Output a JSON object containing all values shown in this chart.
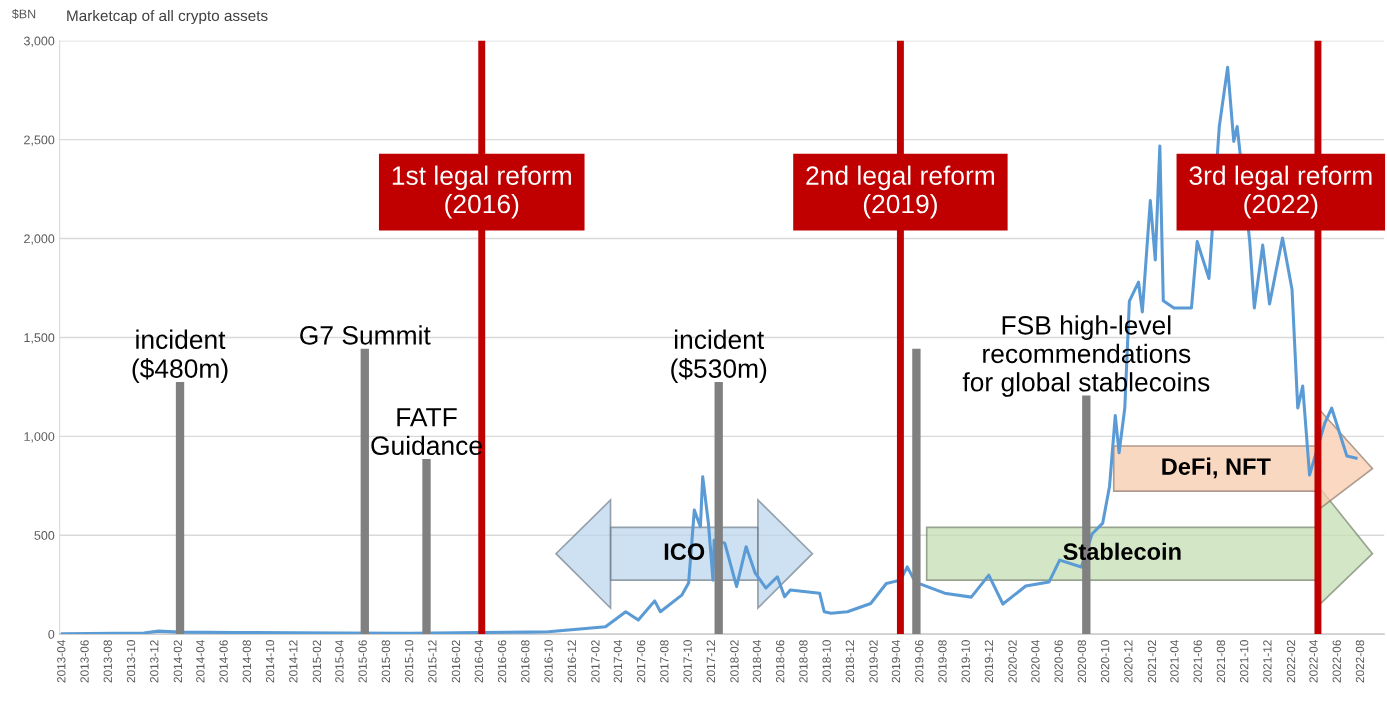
{
  "chart_data": {
    "type": "line",
    "title": "Marketcap of all crypto assets",
    "ylabel": "$BN",
    "color": "#5b9bd5",
    "x": [
      "2013-04-01",
      "2013-11-01",
      "2013-12-10",
      "2014-02-01",
      "2014-07-01",
      "2015-04-01",
      "2015-10-01",
      "2016-04-01",
      "2016-08-01",
      "2016-09-28",
      "2017-02-25",
      "2017-04-19",
      "2017-05-22",
      "2017-07-04",
      "2017-07-19",
      "2017-09-13",
      "2017-10-01",
      "2017-10-16",
      "2017-11-01",
      "2017-11-07",
      "2017-11-22",
      "2017-12-04",
      "2017-12-07",
      "2018-01-04",
      "2018-02-04",
      "2018-03-01",
      "2018-03-25",
      "2018-04-22",
      "2018-05-22",
      "2018-06-10",
      "2018-06-25",
      "2018-09-10",
      "2018-09-22",
      "2018-10-10",
      "2018-11-22",
      "2019-01-22",
      "2019-03-04",
      "2019-04-10",
      "2019-04-28",
      "2019-05-19",
      "2019-08-04",
      "2019-10-13",
      "2019-11-28",
      "2020-01-04",
      "2020-03-04",
      "2020-05-04",
      "2020-06-01",
      "2020-07-28",
      "2020-08-25",
      "2020-09-22",
      "2020-10-10",
      "2020-10-25",
      "2020-11-04",
      "2020-11-19",
      "2020-12-01",
      "2020-12-25",
      "2021-01-04",
      "2021-01-25",
      "2021-02-07",
      "2021-02-19",
      "2021-02-28",
      "2021-03-28",
      "2021-05-13",
      "2021-05-28",
      "2021-06-28",
      "2021-07-25",
      "2021-08-16",
      "2021-09-01",
      "2021-09-10",
      "2021-10-13",
      "2021-10-25",
      "2021-11-16",
      "2021-12-04",
      "2022-01-07",
      "2022-02-01",
      "2022-02-16",
      "2022-03-01",
      "2022-03-19",
      "2022-04-28",
      "2022-05-16",
      "2022-06-25",
      "2022-07-19"
    ],
    "values": [
      2,
      5,
      15,
      10,
      8,
      5,
      4,
      8,
      10,
      12,
      37,
      113,
      71,
      168,
      113,
      197,
      258,
      627,
      543,
      796,
      561,
      273,
      475,
      460,
      240,
      442,
      308,
      233,
      290,
      189,
      223,
      207,
      113,
      105,
      113,
      155,
      256,
      273,
      340,
      263,
      207,
      187,
      298,
      152,
      243,
      263,
      374,
      339,
      506,
      561,
      748,
      1105,
      917,
      1143,
      1684,
      1780,
      1629,
      2192,
      1892,
      2468,
      1686,
      1649,
      1649,
      1985,
      1798,
      2566,
      2866,
      2491,
      2566,
      1985,
      1649,
      1967,
      1669,
      2003,
      1742,
      1143,
      1254,
      804,
      1067,
      1143,
      900,
      890
    ],
    "xlim": [
      "2013-03-25",
      "2022-10-01"
    ],
    "xticks": [
      "2013-04",
      "2013-06",
      "2013-08",
      "2013-10",
      "2013-12",
      "2014-02",
      "2014-04",
      "2014-06",
      "2014-08",
      "2014-10",
      "2014-12",
      "2015-02",
      "2015-04",
      "2015-06",
      "2015-08",
      "2015-10",
      "2015-12",
      "2016-02",
      "2016-04",
      "2016-06",
      "2016-08",
      "2016-10",
      "2016-12",
      "2017-02",
      "2017-04",
      "2017-06",
      "2017-08",
      "2017-10",
      "2017-12",
      "2018-02",
      "2018-04",
      "2018-06",
      "2018-08",
      "2018-10",
      "2018-12",
      "2019-02",
      "2019-04",
      "2019-06",
      "2019-08",
      "2019-10",
      "2019-12",
      "2020-02",
      "2020-04",
      "2020-06",
      "2020-08",
      "2020-10",
      "2020-12",
      "2021-02",
      "2021-04",
      "2021-06",
      "2021-08",
      "2021-10",
      "2021-12",
      "2022-02",
      "2022-04",
      "2022-06",
      "2022-08"
    ],
    "ylim": [
      0,
      3000
    ],
    "yticks": [
      0,
      500,
      {
        "value": 1000,
        "label": "1,000"
      },
      {
        "value": 1500,
        "label": "1,500"
      },
      {
        "value": 2000,
        "label": "2,000"
      },
      {
        "value": 2500,
        "label": "2,500"
      },
      {
        "value": 3000,
        "label": "3,000"
      }
    ],
    "grid": "y",
    "ref_lines": [
      {
        "axis": "x",
        "value": "2016-04-06",
        "label": "1st legal reform\n(2016)",
        "color": "#c00000"
      },
      {
        "axis": "x",
        "value": "2019-04-10",
        "label": "2nd legal reform\n(2019)",
        "color": "#c00000"
      },
      {
        "axis": "x",
        "value": "2022-04-10",
        "label": "3rd legal reform\n(2022)",
        "color": "#c00000"
      },
      {
        "axis": "x",
        "value": "2014-02-04",
        "label": "incident\n($480m)",
        "color": "#808080"
      },
      {
        "axis": "x",
        "value": "2015-06-04",
        "label": "G7 Summit",
        "color": "#808080"
      },
      {
        "axis": "x",
        "value": "2015-11-13",
        "label": "FATF\nGuidance",
        "color": "#808080"
      },
      {
        "axis": "x",
        "value": "2017-12-19",
        "label": "incident\n($530m)",
        "color": "#808080"
      },
      {
        "axis": "x",
        "value": "2019-05-22",
        "color": "#808080"
      },
      {
        "axis": "x",
        "value": "2020-08-10",
        "label": "FSB high-level\nrecommendations\nfor global stablecoins",
        "color": "#808080"
      }
    ],
    "bands": [
      {
        "axis": "x",
        "from": "2017-03-10",
        "to": "2018-04-01",
        "label": "ICO",
        "color": "#bdd7ee"
      },
      {
        "axis": "x",
        "from": "2019-06-18",
        "to": "2022-04-10",
        "label": "Stablecoin",
        "color": "#c5e0b4"
      },
      {
        "axis": "x",
        "from": "2020-10-21",
        "to": "2022-04-10",
        "label": "DeFi, NFT",
        "color": "#f8cbad"
      }
    ]
  }
}
